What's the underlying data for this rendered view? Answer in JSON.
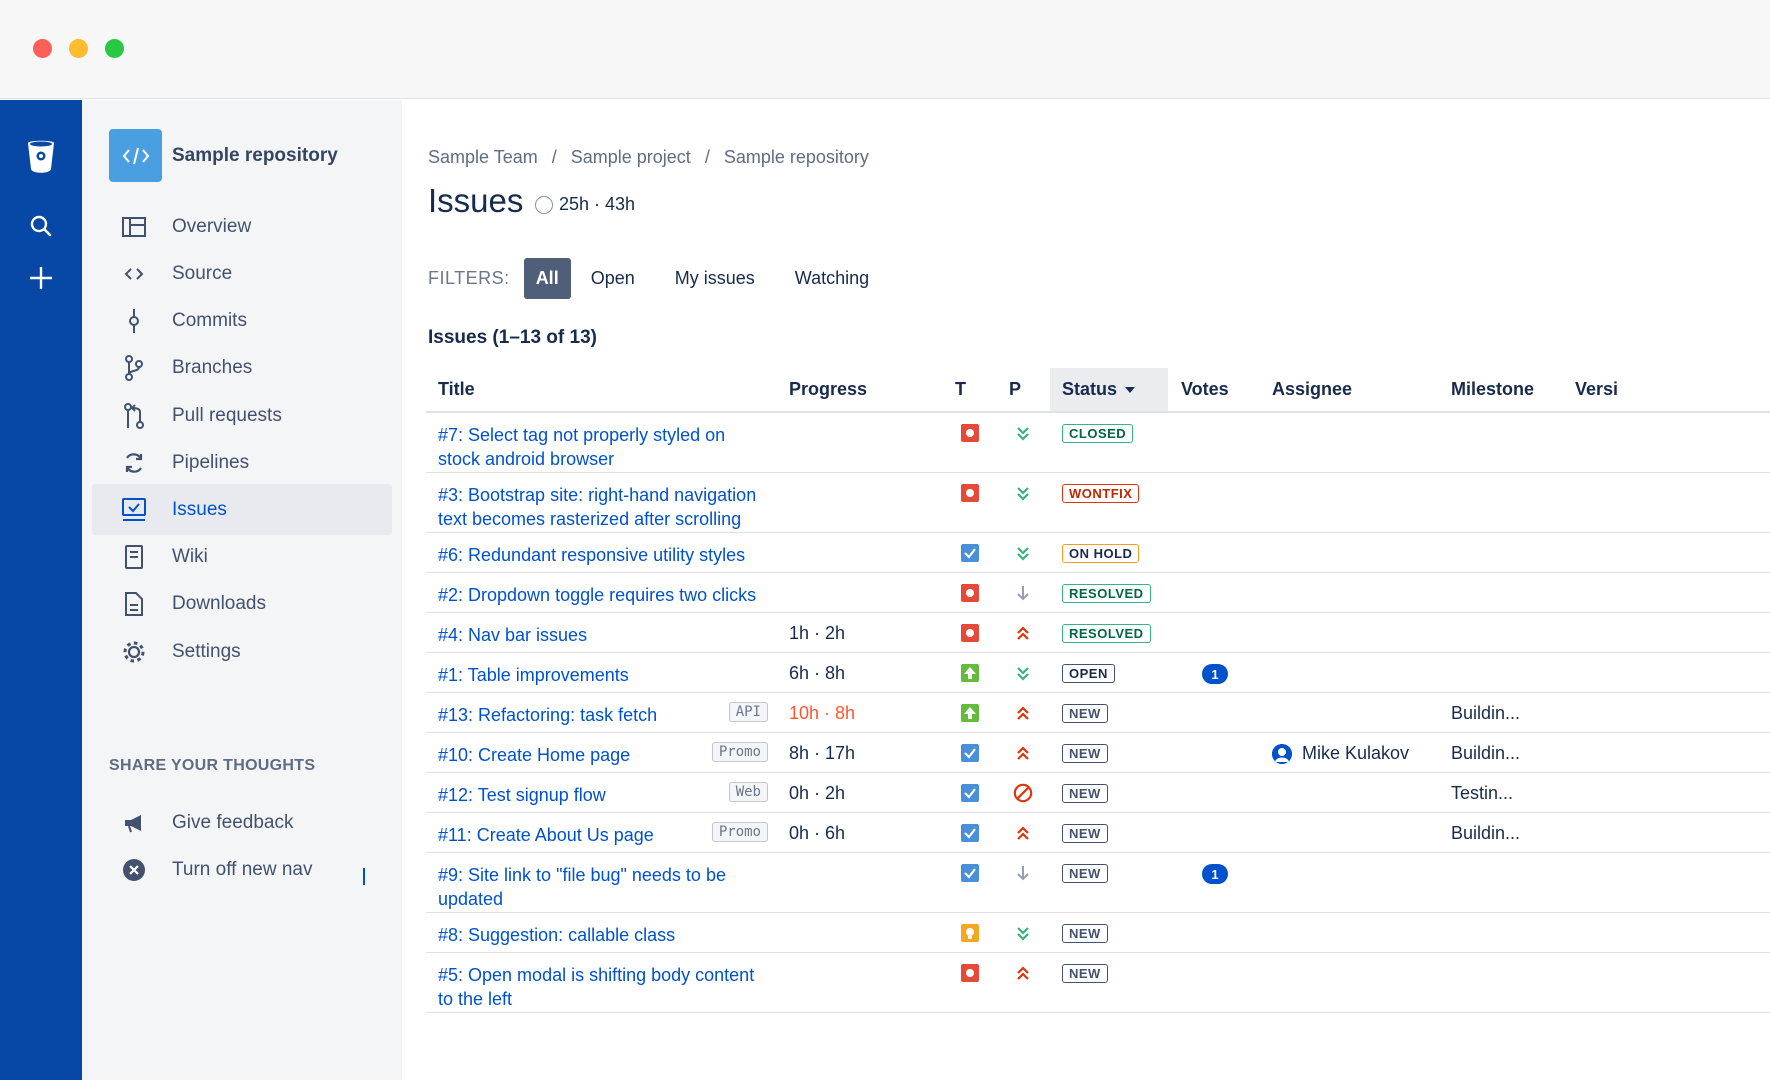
{
  "sidebar": {
    "repo_name": "Sample repository",
    "items": [
      {
        "label": "Overview",
        "icon": "overview-icon"
      },
      {
        "label": "Source",
        "icon": "source-code-icon"
      },
      {
        "label": "Commits",
        "icon": "commit-icon"
      },
      {
        "label": "Branches",
        "icon": "branch-icon"
      },
      {
        "label": "Pull requests",
        "icon": "pull-request-icon"
      },
      {
        "label": "Pipelines",
        "icon": "pipelines-icon"
      },
      {
        "label": "Issues",
        "icon": "issues-icon",
        "active": true
      },
      {
        "label": "Wiki",
        "icon": "wiki-icon"
      },
      {
        "label": "Downloads",
        "icon": "downloads-icon"
      },
      {
        "label": "Settings",
        "icon": "settings-icon"
      }
    ],
    "share_title": "SHARE YOUR THOUGHTS",
    "share_items": [
      {
        "label": "Give feedback",
        "icon": "megaphone-icon"
      },
      {
        "label": "Turn off new nav",
        "icon": "close-circle-icon"
      }
    ]
  },
  "breadcrumbs": [
    "Sample Team",
    "Sample project",
    "Sample repository"
  ],
  "breadcrumb_separator": "/",
  "page_title": "Issues",
  "time_estimate": "25h · 43h",
  "filters": {
    "label": "FILTERS:",
    "options": [
      "All",
      "Open",
      "My issues",
      "Watching"
    ],
    "selected": "All"
  },
  "issues_count": "Issues (1–13 of 13)",
  "columns": {
    "title": "Title",
    "progress": "Progress",
    "type": "T",
    "priority": "P",
    "status": "Status",
    "votes": "Votes",
    "assignee": "Assignee",
    "milestone": "Milestone",
    "version": "Versi"
  },
  "issues": [
    {
      "title_line1": "#7: Select tag not properly styled on",
      "title_line2": "stock android browser",
      "tag": "",
      "progress": "",
      "type": "bug",
      "priority": "trivial",
      "status": "CLOSED",
      "votes": "",
      "assignee": "",
      "milestone": ""
    },
    {
      "title_line1": "#3: Bootstrap site: right-hand navigation",
      "title_line2": "text becomes rasterized after scrolling",
      "tag": "",
      "progress": "",
      "type": "bug",
      "priority": "trivial",
      "status": "WONTFIX",
      "votes": "",
      "assignee": "",
      "milestone": ""
    },
    {
      "title_line1": "#6: Redundant responsive utility styles",
      "title_line2": "",
      "tag": "",
      "progress": "",
      "type": "task",
      "priority": "trivial",
      "status": "ON HOLD",
      "votes": "",
      "assignee": "",
      "milestone": ""
    },
    {
      "title_line1": "#2: Dropdown toggle requires two clicks",
      "title_line2": "",
      "tag": "",
      "progress": "",
      "type": "bug",
      "priority": "minor",
      "status": "RESOLVED",
      "votes": "",
      "assignee": "",
      "milestone": ""
    },
    {
      "title_line1": "#4: Nav bar issues",
      "title_line2": "",
      "tag": "",
      "progress": "1h · 2h",
      "type": "bug",
      "priority": "critical",
      "status": "RESOLVED",
      "votes": "",
      "assignee": "",
      "milestone": ""
    },
    {
      "title_line1": "#1: Table improvements",
      "title_line2": "",
      "tag": "",
      "progress": "6h · 8h",
      "type": "enhancement",
      "priority": "trivial",
      "status": "OPEN",
      "votes": "1",
      "assignee": "",
      "milestone": ""
    },
    {
      "title_line1": "#13: Refactoring: task fetch",
      "title_line2": "",
      "tag": "API",
      "progress": "10h · 8h",
      "progress_over": true,
      "type": "enhancement",
      "priority": "critical",
      "status": "NEW",
      "votes": "",
      "assignee": "",
      "milestone": "Buildin..."
    },
    {
      "title_line1": "#10: Create Home page",
      "title_line2": "",
      "tag": "Promo",
      "progress": "8h · 17h",
      "type": "task",
      "priority": "critical",
      "status": "NEW",
      "votes": "",
      "assignee": "Mike Kulakov",
      "milestone": "Buildin..."
    },
    {
      "title_line1": "#12: Test signup flow",
      "title_line2": "",
      "tag": "Web",
      "progress": "0h · 2h",
      "type": "task",
      "priority": "blocker",
      "status": "NEW",
      "votes": "",
      "assignee": "",
      "milestone": "Testin..."
    },
    {
      "title_line1": "#11: Create About Us page",
      "title_line2": "",
      "tag": "Promo",
      "progress": "0h · 6h",
      "type": "task",
      "priority": "critical",
      "status": "NEW",
      "votes": "",
      "assignee": "",
      "milestone": "Buildin..."
    },
    {
      "title_line1": "#9: Site link to \"file bug\" needs to be",
      "title_line2": "updated",
      "tag": "",
      "progress": "",
      "type": "task",
      "priority": "minor",
      "status": "NEW",
      "votes": "1",
      "assignee": "",
      "milestone": ""
    },
    {
      "title_line1": "#8: Suggestion: callable class",
      "title_line2": "",
      "tag": "",
      "progress": "",
      "type": "proposal",
      "priority": "trivial",
      "status": "NEW",
      "votes": "",
      "assignee": "",
      "milestone": ""
    },
    {
      "title_line1": "#5: Open modal is shifting body content",
      "title_line2": "to the left",
      "tag": "",
      "progress": "",
      "type": "bug",
      "priority": "critical",
      "status": "NEW",
      "votes": "",
      "assignee": "",
      "milestone": ""
    }
  ],
  "colors": {
    "global_nav": "#0747a6",
    "link": "#0052cc",
    "bug": "#e5493a",
    "task": "#4a90d9",
    "enhancement": "#63ba3c",
    "proposal": "#f5a623",
    "status_closed": "#36b37e",
    "status_wontfix": "#de350b",
    "status_onhold": "#ff991f",
    "status_resolved": "#36b37e",
    "status_open": "#42526e",
    "status_new": "#42526e"
  }
}
